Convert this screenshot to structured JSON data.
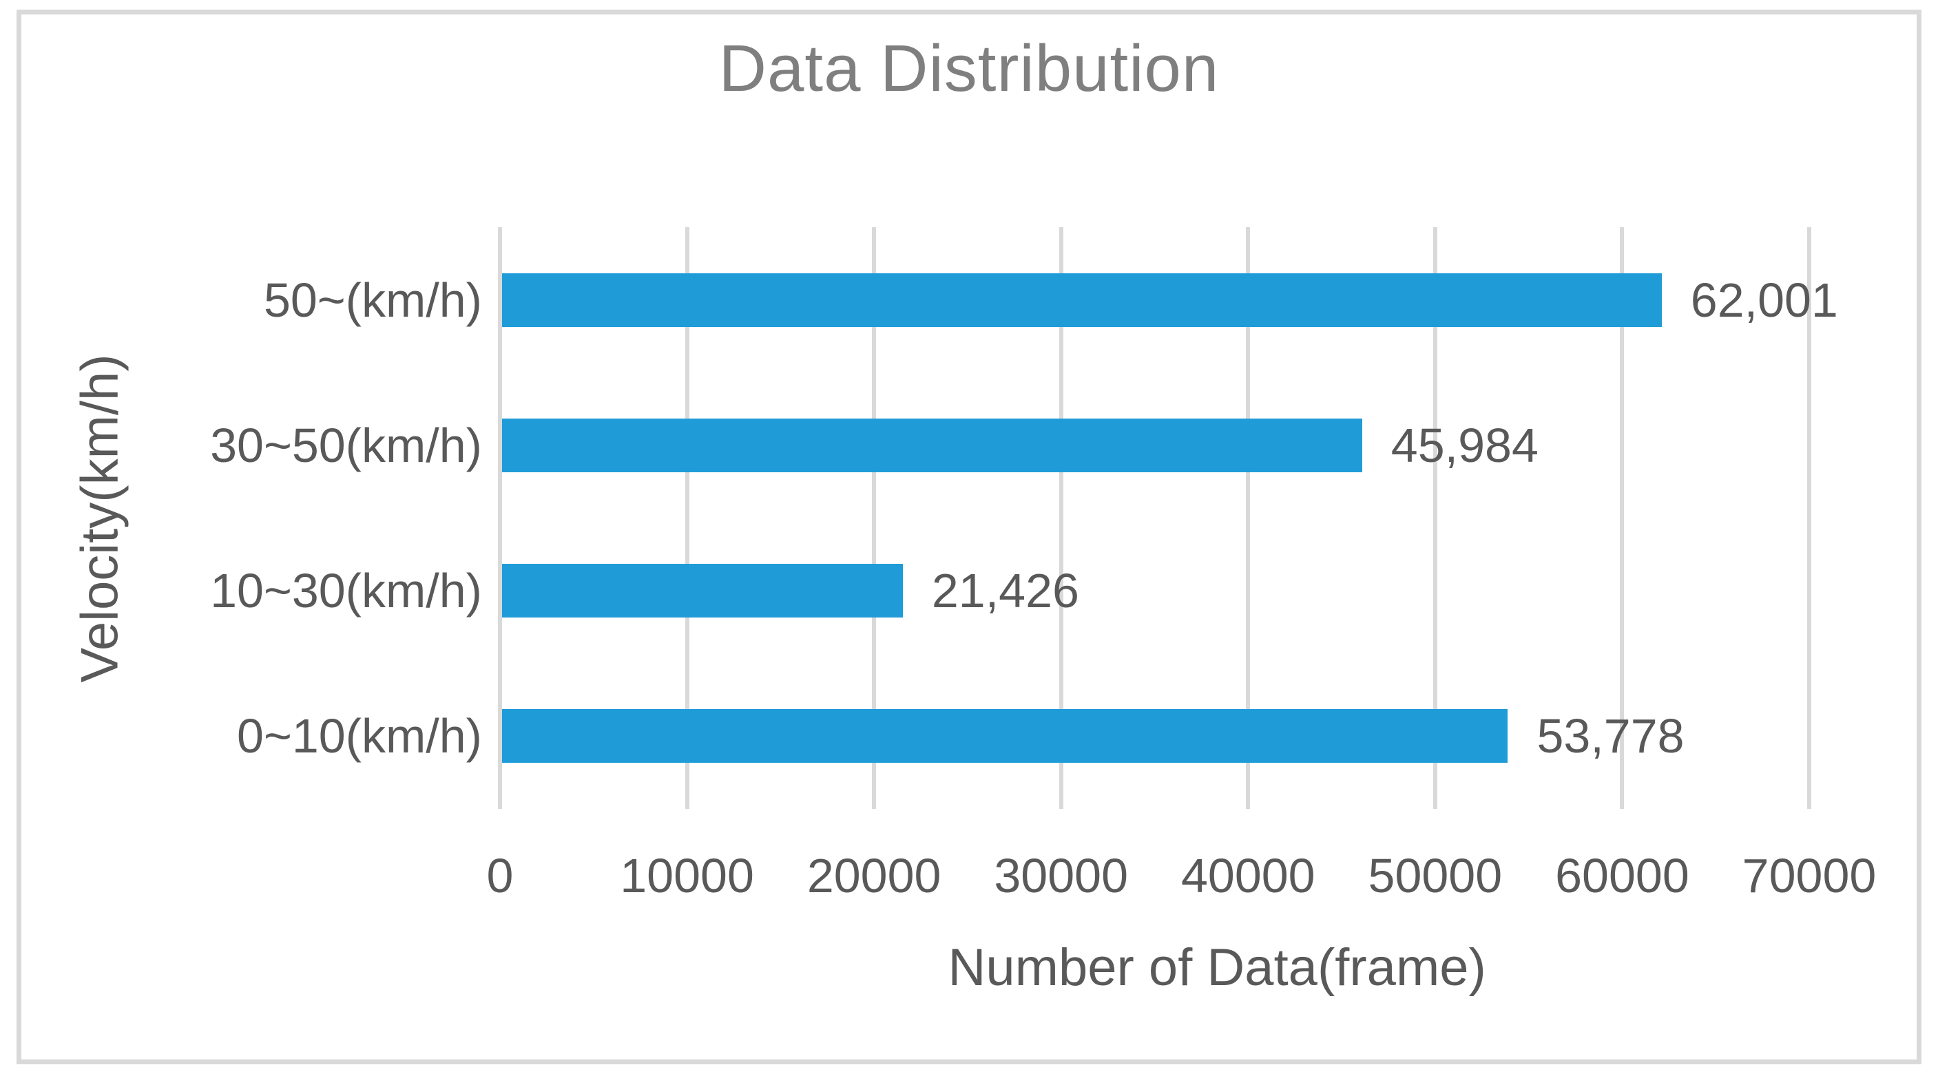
{
  "chart_data": {
    "type": "bar",
    "orientation": "horizontal",
    "title": "Data Distribution",
    "xlabel": "Number of Data(frame)",
    "ylabel": "Velocity(km/h)",
    "categories_bottom_to_top": [
      "0~10(km/h)",
      "10~30(km/h)",
      "30~50(km/h)",
      "50~(km/h)"
    ],
    "rows_top_to_bottom": [
      {
        "label": "50~(km/h)",
        "value": 62001,
        "value_label": "62,001"
      },
      {
        "label": "30~50(km/h)",
        "value": 45984,
        "value_label": "45,984"
      },
      {
        "label": "10~30(km/h)",
        "value": 21426,
        "value_label": "21,426"
      },
      {
        "label": "0~10(km/h)",
        "value": 53778,
        "value_label": "53,778"
      }
    ],
    "x_ticks": [
      0,
      10000,
      20000,
      30000,
      40000,
      50000,
      60000,
      70000
    ],
    "x_tick_labels": [
      "0",
      "10000",
      "20000",
      "30000",
      "40000",
      "50000",
      "60000",
      "70000"
    ],
    "xlim": [
      0,
      70000
    ],
    "grid": true,
    "legend": false,
    "colors": {
      "bar": "#1F9CD8",
      "gridline": "#D9D9D9",
      "frame_border": "#D9D9D9",
      "title_text": "#7F7F7F",
      "label_text": "#595959",
      "background": "#FFFFFF"
    }
  }
}
